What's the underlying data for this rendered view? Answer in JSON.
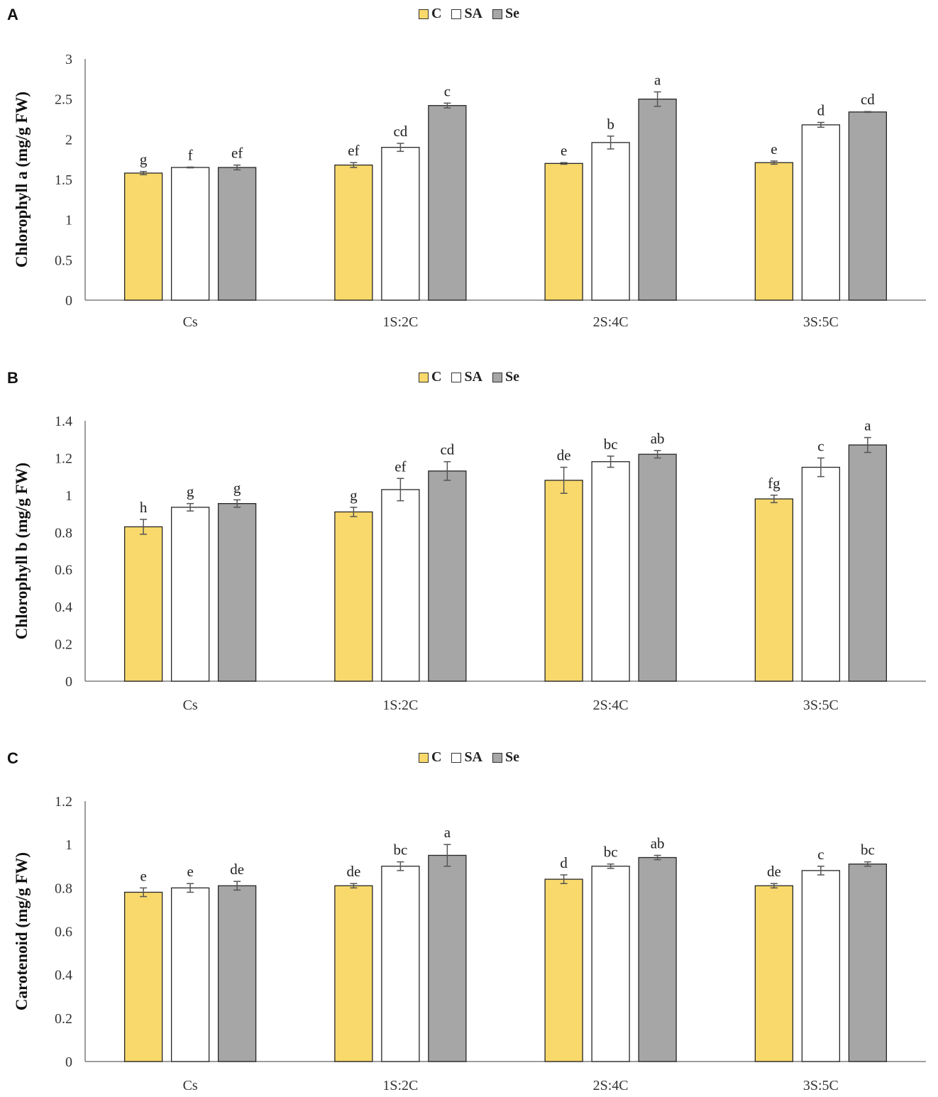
{
  "legend": {
    "labels": [
      "C",
      "SA",
      "Se"
    ]
  },
  "colors": {
    "C": "#f9d96b",
    "SA": "#ffffff",
    "Se": "#a6a6a6",
    "axis": "#7f7f7f",
    "bar_border": "#262626"
  },
  "chart_data": [
    {
      "panel": "A",
      "type": "bar",
      "ylabel": "Chlorophyll a (mg/g FW)",
      "categories": [
        "Cs",
        "1S:2C",
        "2S:4C",
        "3S:5C"
      ],
      "ylim": [
        0,
        3
      ],
      "yticks": [
        "0",
        "0.5",
        "1",
        "1.5",
        "2",
        "2.5",
        "3"
      ],
      "ytick_values": [
        0,
        0.5,
        1,
        1.5,
        2,
        2.5,
        3
      ],
      "series": [
        {
          "name": "C",
          "values": [
            1.58,
            1.68,
            1.7,
            1.71
          ],
          "errors": [
            0.02,
            0.03,
            0.01,
            0.02
          ],
          "letters": [
            "g",
            "ef",
            "e",
            "e"
          ]
        },
        {
          "name": "SA",
          "values": [
            1.65,
            1.9,
            1.96,
            2.18
          ],
          "errors": [
            0.005,
            0.05,
            0.08,
            0.03
          ],
          "letters": [
            "f",
            "cd",
            "b",
            "d"
          ]
        },
        {
          "name": "Se",
          "values": [
            1.65,
            2.42,
            2.5,
            2.34
          ],
          "errors": [
            0.03,
            0.03,
            0.09,
            0.005
          ],
          "letters": [
            "ef",
            "c",
            "a",
            "cd"
          ]
        }
      ]
    },
    {
      "panel": "B",
      "type": "bar",
      "ylabel": "Chlorophyll b (mg/g FW)",
      "categories": [
        "Cs",
        "1S:2C",
        "2S:4C",
        "3S:5C"
      ],
      "ylim": [
        0,
        1.4
      ],
      "yticks": [
        "0",
        "0.2",
        "0.4",
        "0.6",
        "0.8",
        "1",
        "1.2",
        "1.4"
      ],
      "ytick_values": [
        0,
        0.2,
        0.4,
        0.6,
        0.8,
        1,
        1.2,
        1.4
      ],
      "series": [
        {
          "name": "C",
          "values": [
            0.83,
            0.91,
            1.08,
            0.98
          ],
          "errors": [
            0.04,
            0.025,
            0.07,
            0.02
          ],
          "letters": [
            "h",
            "g",
            "de",
            "fg"
          ]
        },
        {
          "name": "SA",
          "values": [
            0.935,
            1.03,
            1.18,
            1.15
          ],
          "errors": [
            0.02,
            0.06,
            0.03,
            0.05
          ],
          "letters": [
            "g",
            "ef",
            "bc",
            "c"
          ]
        },
        {
          "name": "Se",
          "values": [
            0.955,
            1.13,
            1.22,
            1.27
          ],
          "errors": [
            0.02,
            0.05,
            0.02,
            0.04
          ],
          "letters": [
            "g",
            "cd",
            "ab",
            "a"
          ]
        }
      ]
    },
    {
      "panel": "C",
      "type": "bar",
      "ylabel": "Carotenoid  (mg/g FW)",
      "categories": [
        "Cs",
        "1S:2C",
        "2S:4C",
        "3S:5C"
      ],
      "ylim": [
        0,
        1.2
      ],
      "yticks": [
        "0",
        "0.2",
        "0.4",
        "0.6",
        "0.8",
        "1",
        "1.2"
      ],
      "ytick_values": [
        0,
        0.2,
        0.4,
        0.6,
        0.8,
        1,
        1.2
      ],
      "series": [
        {
          "name": "C",
          "values": [
            0.78,
            0.81,
            0.84,
            0.81
          ],
          "errors": [
            0.02,
            0.01,
            0.02,
            0.01
          ],
          "letters": [
            "e",
            "de",
            "d",
            "de"
          ]
        },
        {
          "name": "SA",
          "values": [
            0.8,
            0.9,
            0.9,
            0.88
          ],
          "errors": [
            0.02,
            0.02,
            0.01,
            0.02
          ],
          "letters": [
            "e",
            "bc",
            "bc",
            "c"
          ]
        },
        {
          "name": "Se",
          "values": [
            0.81,
            0.95,
            0.94,
            0.91
          ],
          "errors": [
            0.02,
            0.05,
            0.01,
            0.01
          ],
          "letters": [
            "de",
            "a",
            "ab",
            "bc"
          ]
        }
      ]
    }
  ]
}
